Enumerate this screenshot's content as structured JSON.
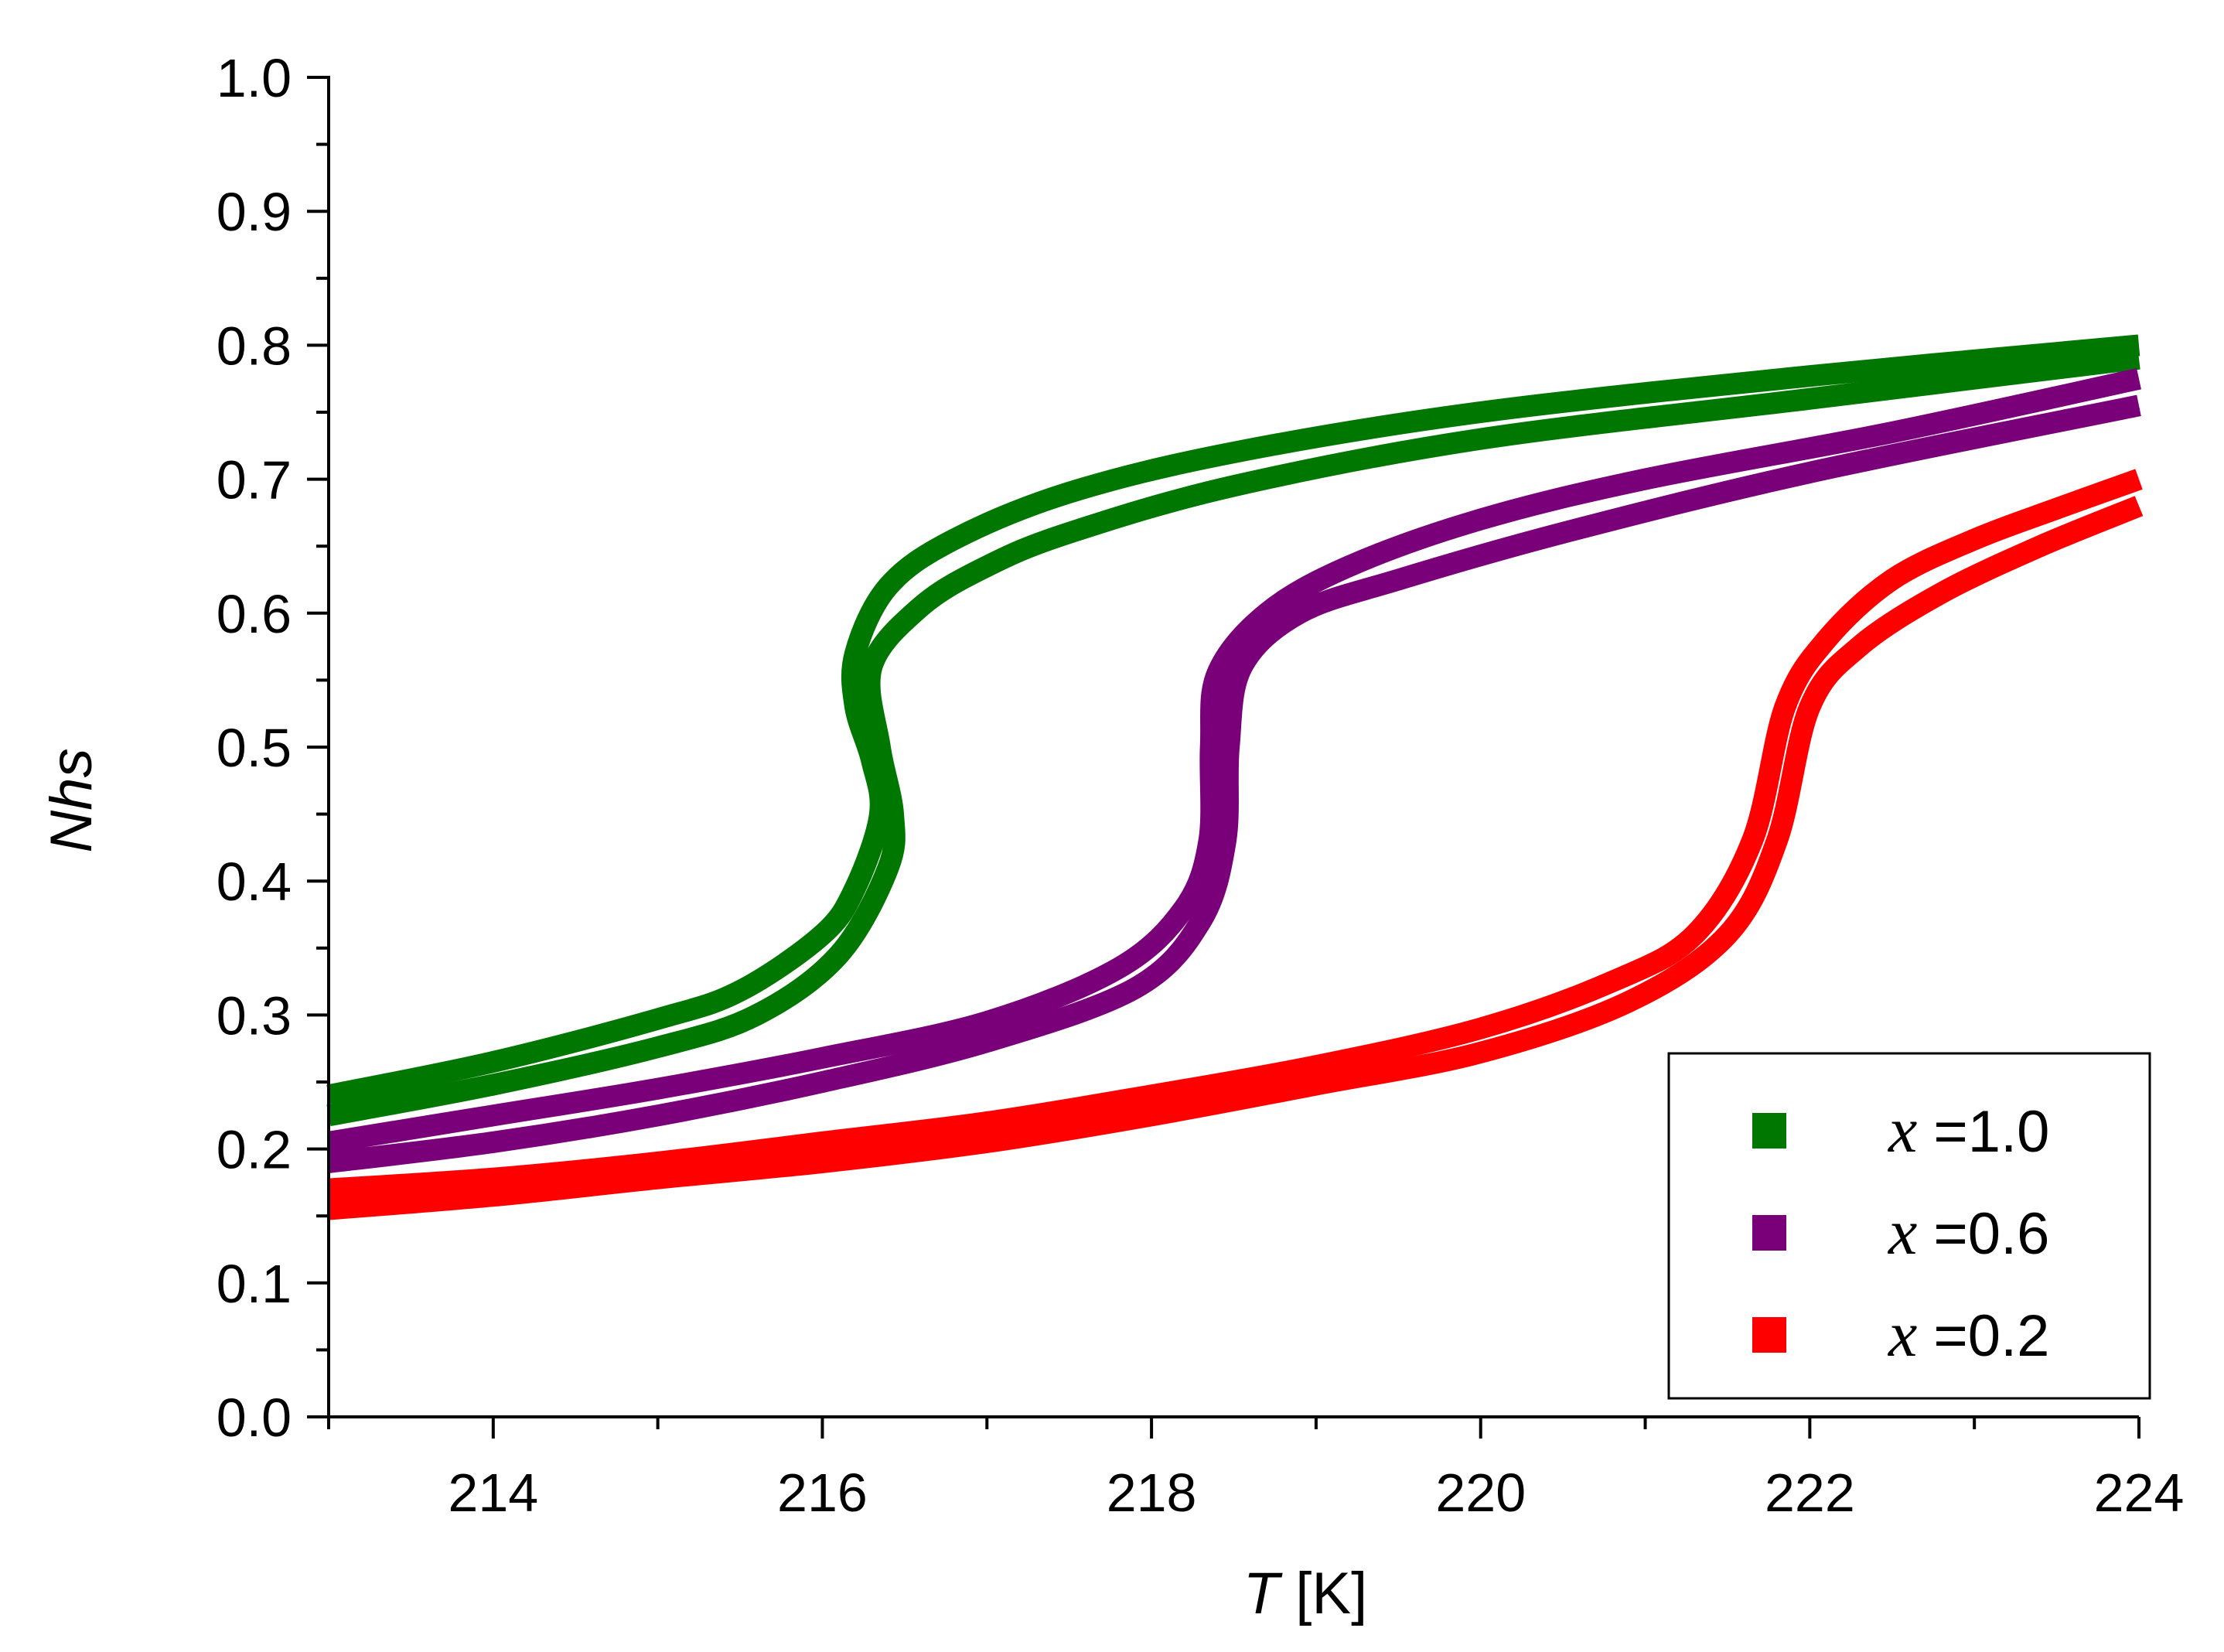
{
  "chart_data": {
    "type": "line",
    "title": "",
    "xlabel": {
      "var": "T",
      "unit": " [K]"
    },
    "ylabel": "Nhs",
    "xlim": [
      213,
      224
    ],
    "ylim": [
      0.0,
      1.0
    ],
    "x_ticks": [
      214,
      216,
      218,
      220,
      222,
      224
    ],
    "y_ticks": [
      "0.0",
      "0.1",
      "0.2",
      "0.3",
      "0.4",
      "0.5",
      "0.6",
      "0.7",
      "0.8",
      "0.9",
      "1.0"
    ],
    "grid": false,
    "legend_position": "bottom-right",
    "series": [
      {
        "name": "x =1.0",
        "var": "x",
        "value_label": " =1.0",
        "color": "#007700",
        "upper": [
          [
            213,
            0.24
          ],
          [
            214,
            0.265
          ],
          [
            215,
            0.297
          ],
          [
            215.5,
            0.318
          ],
          [
            216,
            0.36
          ],
          [
            216.2,
            0.395
          ],
          [
            216.35,
            0.45
          ],
          [
            216.3,
            0.49
          ],
          [
            216.2,
            0.53
          ],
          [
            216.2,
            0.57
          ],
          [
            216.4,
            0.62
          ],
          [
            216.8,
            0.655
          ],
          [
            217.5,
            0.69
          ],
          [
            218.5,
            0.72
          ],
          [
            220,
            0.75
          ],
          [
            222,
            0.777
          ],
          [
            224,
            0.8
          ]
        ],
        "lower": [
          [
            213,
            0.225
          ],
          [
            214,
            0.248
          ],
          [
            215,
            0.276
          ],
          [
            215.6,
            0.3
          ],
          [
            216.1,
            0.345
          ],
          [
            216.4,
            0.41
          ],
          [
            216.43,
            0.45
          ],
          [
            216.35,
            0.5
          ],
          [
            216.3,
            0.56
          ],
          [
            216.6,
            0.605
          ],
          [
            217,
            0.635
          ],
          [
            217.5,
            0.66
          ],
          [
            218.5,
            0.695
          ],
          [
            220,
            0.73
          ],
          [
            222,
            0.76
          ],
          [
            224,
            0.79
          ]
        ]
      },
      {
        "name": "x =0.6",
        "var": "x",
        "value_label": " =0.6",
        "color": "#7a007a",
        "upper": [
          [
            213,
            0.205
          ],
          [
            214,
            0.225
          ],
          [
            215,
            0.245
          ],
          [
            216,
            0.268
          ],
          [
            217,
            0.295
          ],
          [
            217.8,
            0.335
          ],
          [
            218.2,
            0.38
          ],
          [
            218.35,
            0.43
          ],
          [
            218.36,
            0.5
          ],
          [
            218.4,
            0.555
          ],
          [
            218.7,
            0.6
          ],
          [
            219.2,
            0.635
          ],
          [
            220,
            0.67
          ],
          [
            221,
            0.7
          ],
          [
            222.5,
            0.735
          ],
          [
            224,
            0.775
          ]
        ],
        "lower": [
          [
            213,
            0.19
          ],
          [
            214,
            0.205
          ],
          [
            215,
            0.225
          ],
          [
            216,
            0.25
          ],
          [
            217,
            0.28
          ],
          [
            217.9,
            0.32
          ],
          [
            218.3,
            0.37
          ],
          [
            218.45,
            0.43
          ],
          [
            218.47,
            0.5
          ],
          [
            218.55,
            0.56
          ],
          [
            218.9,
            0.6
          ],
          [
            219.5,
            0.625
          ],
          [
            220.5,
            0.66
          ],
          [
            222,
            0.705
          ],
          [
            224,
            0.755
          ]
        ]
      },
      {
        "name": "x =0.2",
        "var": "x",
        "value_label": " =0.2",
        "color": "#ff0000",
        "upper": [
          [
            213,
            0.17
          ],
          [
            214,
            0.178
          ],
          [
            215,
            0.19
          ],
          [
            216,
            0.205
          ],
          [
            217,
            0.22
          ],
          [
            218,
            0.24
          ],
          [
            219,
            0.262
          ],
          [
            220,
            0.29
          ],
          [
            220.8,
            0.325
          ],
          [
            221.3,
            0.36
          ],
          [
            221.65,
            0.43
          ],
          [
            221.85,
            0.53
          ],
          [
            222.1,
            0.58
          ],
          [
            222.5,
            0.625
          ],
          [
            223,
            0.655
          ],
          [
            223.5,
            0.678
          ],
          [
            224,
            0.7
          ]
        ],
        "lower": [
          [
            213,
            0.155
          ],
          [
            214,
            0.165
          ],
          [
            215,
            0.178
          ],
          [
            216,
            0.19
          ],
          [
            217,
            0.205
          ],
          [
            218,
            0.225
          ],
          [
            219,
            0.248
          ],
          [
            220,
            0.272
          ],
          [
            220.9,
            0.31
          ],
          [
            221.5,
            0.36
          ],
          [
            221.8,
            0.43
          ],
          [
            222,
            0.53
          ],
          [
            222.3,
            0.575
          ],
          [
            222.8,
            0.615
          ],
          [
            223.4,
            0.65
          ],
          [
            224,
            0.68
          ]
        ]
      }
    ]
  }
}
